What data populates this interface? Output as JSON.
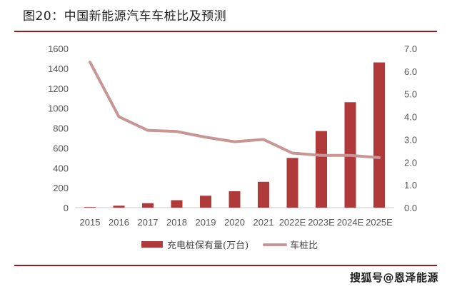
{
  "title": "图20：中国新能源汽车车桩比及预测",
  "colors": {
    "bar": "#b03a3a",
    "line": "#c99696",
    "rule": "#8a1f1f",
    "axis": "#c8c8c8"
  },
  "legend": {
    "bar_label": "充电桩保有量(万台)",
    "line_label": "车桩比"
  },
  "watermark": "搜狐号@恩泽能源",
  "chart_data": {
    "type": "bar+line",
    "title": "中国新能源汽车车桩比及预测",
    "categories": [
      "2015",
      "2016",
      "2017",
      "2018",
      "2019",
      "2020",
      "2021",
      "2022E",
      "2023E",
      "2024E",
      "2025E"
    ],
    "series": [
      {
        "name": "充电桩保有量(万台)",
        "type": "bar",
        "axis": "left",
        "values": [
          6,
          20,
          45,
          75,
          120,
          165,
          260,
          500,
          770,
          1060,
          1460
        ]
      },
      {
        "name": "车桩比",
        "type": "line",
        "axis": "right",
        "values": [
          6.4,
          4.0,
          3.4,
          3.35,
          3.1,
          2.9,
          3.0,
          2.4,
          2.3,
          2.3,
          2.2
        ]
      }
    ],
    "y_left": {
      "range": [
        0,
        1600
      ],
      "ticks": [
        0,
        200,
        400,
        600,
        800,
        1000,
        1200,
        1400,
        1600
      ]
    },
    "y_right": {
      "range": [
        0,
        7
      ],
      "ticks": [
        "0.0",
        "1.0",
        "2.0",
        "3.0",
        "4.0",
        "5.0",
        "6.0",
        "7.0"
      ]
    },
    "grid": false,
    "legend_position": "bottom"
  }
}
